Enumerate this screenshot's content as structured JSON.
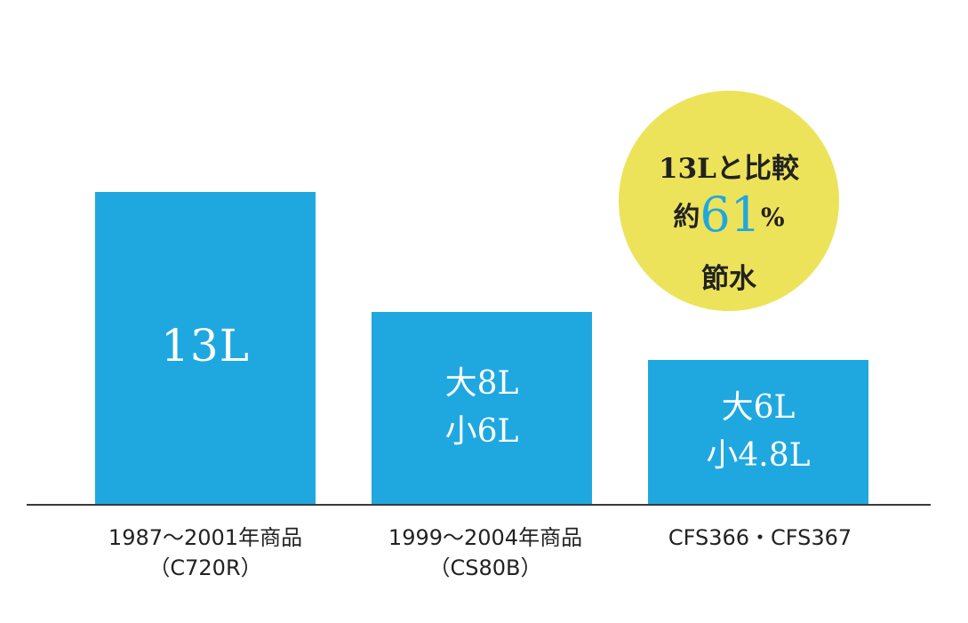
{
  "chart_data": {
    "type": "bar",
    "categories": [
      {
        "line1": "1987〜2001年商品",
        "line2": "（C720R）"
      },
      {
        "line1": "1999〜2004年商品",
        "line2": "（CS80B）"
      },
      {
        "line1": "CFS366・CFS367",
        "line2": ""
      }
    ],
    "values": [
      13,
      8,
      6
    ],
    "bar_labels": [
      {
        "lines": [
          "13L"
        ]
      },
      {
        "lines": [
          "大8L",
          "小6L"
        ]
      },
      {
        "lines": [
          "大6L",
          "小4.8L"
        ]
      }
    ],
    "ylim": [
      0,
      20
    ],
    "bar_color": "#1fa8e0",
    "grid": false
  },
  "badge": {
    "line1": "13Lと比較",
    "line2_prefix": "約",
    "line2_number": "61",
    "line2_suffix": "%",
    "line3": "節水",
    "background": "#ede35a",
    "number_color": "#1fa8e0"
  }
}
